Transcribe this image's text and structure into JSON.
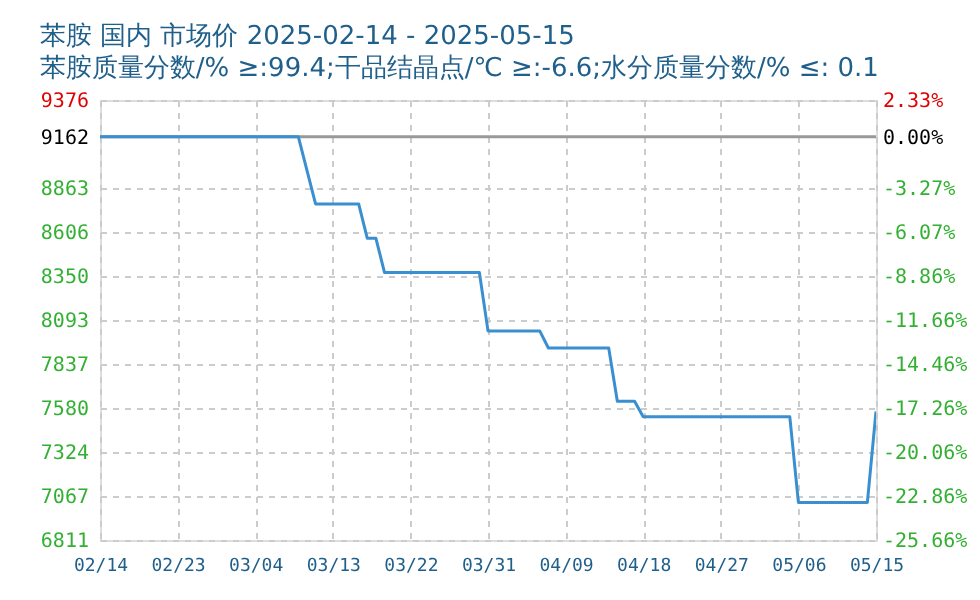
{
  "chart_data": {
    "type": "line",
    "title": "苯胺 国内 市场价 2025-02-14 - 2025-05-15",
    "subtitle": "苯胺质量分数/% ≥:99.4;干品结晶点/℃  ≥:-6.6;水分质量分数/%  ≤: 0.1",
    "x": [
      "2025-02-14",
      "2025-03-09",
      "2025-03-11",
      "2025-03-16",
      "2025-03-17",
      "2025-03-18",
      "2025-03-19",
      "2025-03-30",
      "2025-03-31",
      "2025-04-06",
      "2025-04-07",
      "2025-04-14",
      "2025-04-15",
      "2025-04-17",
      "2025-04-18",
      "2025-05-05",
      "2025-05-06",
      "2025-05-14",
      "2025-05-15"
    ],
    "series": [
      {
        "color": "#3a8fd0",
        "values": [
          9162,
          9162,
          8770,
          8770,
          8570,
          8570,
          8370,
          8370,
          8030,
          8030,
          7930,
          7930,
          7620,
          7620,
          7530,
          7530,
          7030,
          7030,
          7560
        ]
      }
    ],
    "xlim": [
      "2025-02-14",
      "2025-05-15"
    ],
    "xticks": [
      {
        "value": "2025-02-14",
        "label": "02/14"
      },
      {
        "value": "2025-02-23",
        "label": "02/23"
      },
      {
        "value": "2025-03-04",
        "label": "03/04"
      },
      {
        "value": "2025-03-13",
        "label": "03/13"
      },
      {
        "value": "2025-03-22",
        "label": "03/22"
      },
      {
        "value": "2025-03-31",
        "label": "03/31"
      },
      {
        "value": "2025-04-09",
        "label": "04/09"
      },
      {
        "value": "2025-04-18",
        "label": "04/18"
      },
      {
        "value": "2025-04-27",
        "label": "04/27"
      },
      {
        "value": "2025-05-06",
        "label": "05/06"
      },
      {
        "value": "2025-05-15",
        "label": "05/15"
      }
    ],
    "ylim": [
      6811,
      9376
    ],
    "yticks": [
      9376,
      9162,
      8863,
      8606,
      8350,
      8093,
      7837,
      7580,
      7324,
      7067,
      6811
    ],
    "y2lim": [
      -25.66,
      2.33
    ],
    "y2ticks": [
      {
        "value": 2.33,
        "label": "2.33%"
      },
      {
        "value": 0,
        "label": "0.00%"
      },
      {
        "value": -3.27,
        "label": "-3.27%"
      },
      {
        "value": -6.07,
        "label": "-6.07%"
      },
      {
        "value": -8.86,
        "label": "-8.86%"
      },
      {
        "value": -11.66,
        "label": "-11.66%"
      },
      {
        "value": -14.46,
        "label": "-14.46%"
      },
      {
        "value": -17.26,
        "label": "-17.26%"
      },
      {
        "value": -20.06,
        "label": "-20.06%"
      },
      {
        "value": -22.86,
        "label": "-22.86%"
      },
      {
        "value": -25.66,
        "label": "-25.66%"
      }
    ],
    "ref_lines": [
      {
        "axis": "y2",
        "value": 0,
        "color": "#999999"
      }
    ],
    "grid": true,
    "marker": "none",
    "line_style": "solid"
  }
}
